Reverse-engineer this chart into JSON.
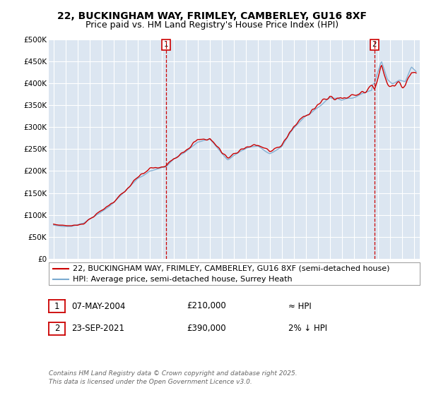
{
  "title": "22, BUCKINGHAM WAY, FRIMLEY, CAMBERLEY, GU16 8XF",
  "subtitle": "Price paid vs. HM Land Registry's House Price Index (HPI)",
  "ylim": [
    0,
    500000
  ],
  "yticks": [
    0,
    50000,
    100000,
    150000,
    200000,
    250000,
    300000,
    350000,
    400000,
    450000,
    500000
  ],
  "ytick_labels": [
    "£0",
    "£50K",
    "£100K",
    "£150K",
    "£200K",
    "£250K",
    "£300K",
    "£350K",
    "£400K",
    "£450K",
    "£500K"
  ],
  "plot_bg_color": "#dce6f1",
  "grid_color": "#ffffff",
  "sale1_date": 2004.35,
  "sale1_price": 210000,
  "sale2_date": 2021.73,
  "sale2_price": 390000,
  "legend_line1": "22, BUCKINGHAM WAY, FRIMLEY, CAMBERLEY, GU16 8XF (semi-detached house)",
  "legend_line2": "HPI: Average price, semi-detached house, Surrey Heath",
  "annotation1_label": "1",
  "annotation1_date": "07-MAY-2004",
  "annotation1_price": "£210,000",
  "annotation1_hpi": "≈ HPI",
  "annotation2_label": "2",
  "annotation2_date": "23-SEP-2021",
  "annotation2_price": "£390,000",
  "annotation2_hpi": "2% ↓ HPI",
  "footer": "Contains HM Land Registry data © Crown copyright and database right 2025.\nThis data is licensed under the Open Government Licence v3.0.",
  "line_color_sale": "#cc0000",
  "line_color_hpi": "#7aaad0",
  "title_fontsize": 10,
  "subtitle_fontsize": 9,
  "tick_fontsize": 7.5,
  "legend_fontsize": 8,
  "ann_fontsize": 8.5,
  "footer_fontsize": 6.5
}
